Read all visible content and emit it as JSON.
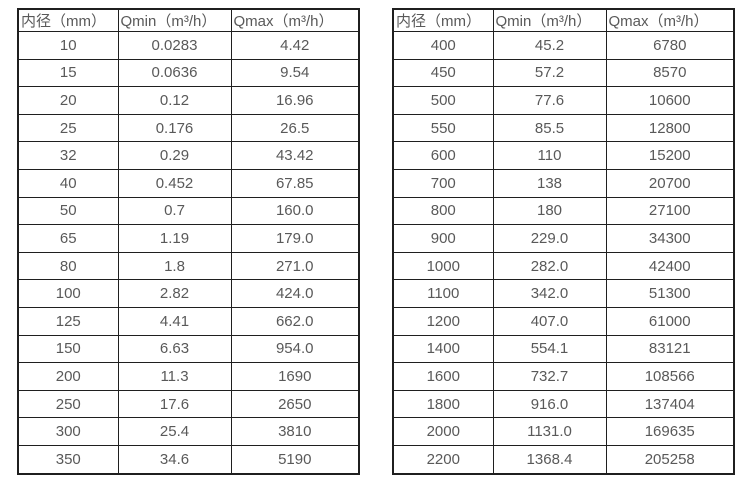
{
  "colors": {
    "background": "#ffffff",
    "border": "#1f1f1f",
    "text": "#595959"
  },
  "tables": [
    {
      "name": "flow-rate-table-small-diameters",
      "headers": [
        "内径（mm）",
        "Qmin（m³/h）",
        "Qmax（m³/h）"
      ],
      "rows": [
        [
          "10",
          "0.0283",
          "4.42"
        ],
        [
          "15",
          "0.0636",
          "9.54"
        ],
        [
          "20",
          "0.12",
          "16.96"
        ],
        [
          "25",
          "0.176",
          "26.5"
        ],
        [
          "32",
          "0.29",
          "43.42"
        ],
        [
          "40",
          "0.452",
          "67.85"
        ],
        [
          "50",
          "0.7",
          "160.0"
        ],
        [
          "65",
          "1.19",
          "179.0"
        ],
        [
          "80",
          "1.8",
          "271.0"
        ],
        [
          "100",
          "2.82",
          "424.0"
        ],
        [
          "125",
          "4.41",
          "662.0"
        ],
        [
          "150",
          "6.63",
          "954.0"
        ],
        [
          "200",
          "11.3",
          "1690"
        ],
        [
          "250",
          "17.6",
          "2650"
        ],
        [
          "300",
          "25.4",
          "3810"
        ],
        [
          "350",
          "34.6",
          "5190"
        ]
      ]
    },
    {
      "name": "flow-rate-table-large-diameters",
      "headers": [
        "内径（mm）",
        "Qmin（m³/h）",
        "Qmax（m³/h）"
      ],
      "rows": [
        [
          "400",
          "45.2",
          "6780"
        ],
        [
          "450",
          "57.2",
          "8570"
        ],
        [
          "500",
          "77.6",
          "10600"
        ],
        [
          "550",
          "85.5",
          "12800"
        ],
        [
          "600",
          "110",
          "15200"
        ],
        [
          "700",
          "138",
          "20700"
        ],
        [
          "800",
          "180",
          "27100"
        ],
        [
          "900",
          "229.0",
          "34300"
        ],
        [
          "1000",
          "282.0",
          "42400"
        ],
        [
          "1100",
          "342.0",
          "51300"
        ],
        [
          "1200",
          "407.0",
          "61000"
        ],
        [
          "1400",
          "554.1",
          "83121"
        ],
        [
          "1600",
          "732.7",
          "108566"
        ],
        [
          "1800",
          "916.0",
          "137404"
        ],
        [
          "2000",
          "1131.0",
          "169635"
        ],
        [
          "2200",
          "1368.4",
          "205258"
        ]
      ]
    }
  ]
}
